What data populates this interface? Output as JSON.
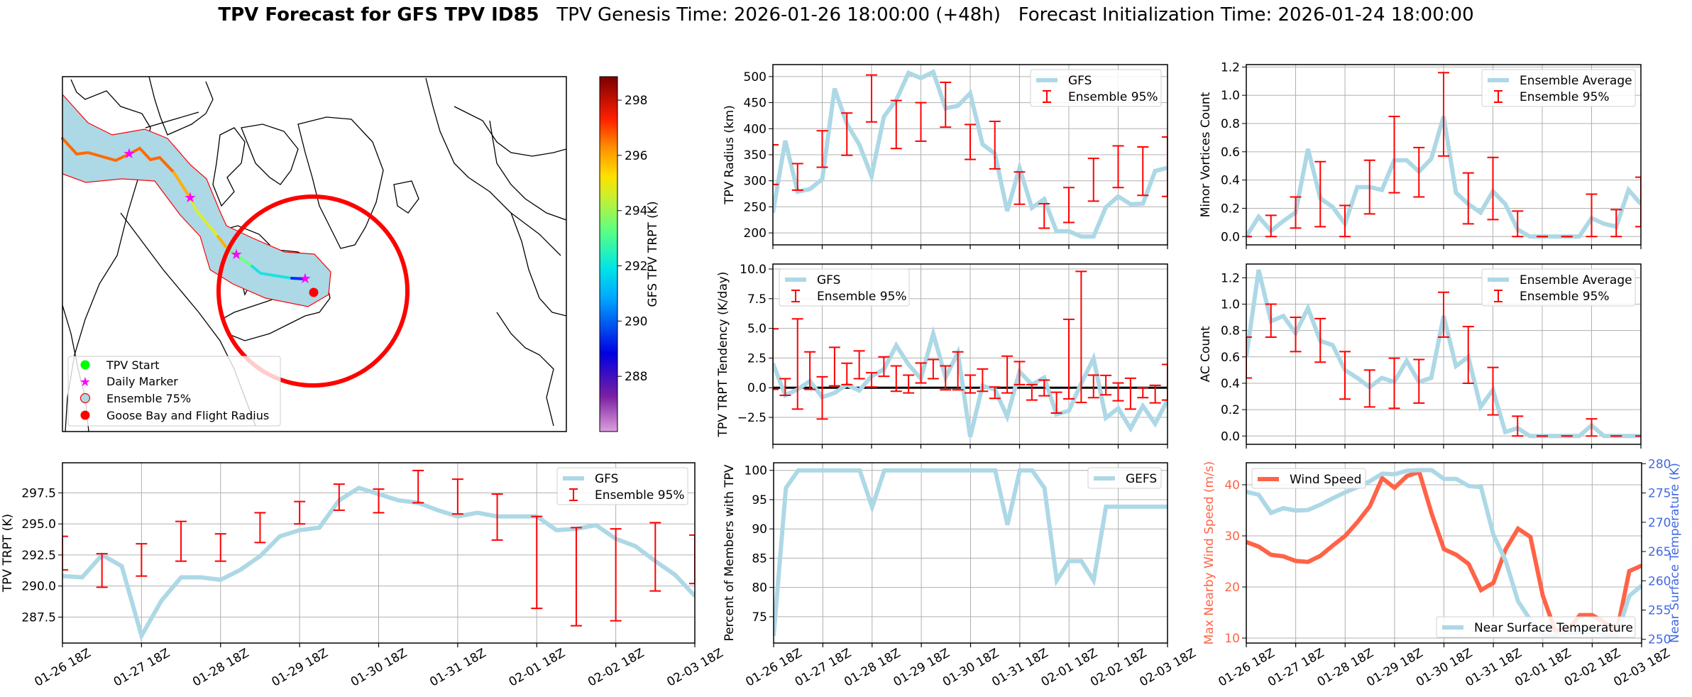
{
  "title": {
    "bold": "TPV Forecast for GFS TPV ID85",
    "genesis": "TPV Genesis Time: 2026-01-26 18:00:00 (+48h)",
    "init": "Forecast Initialization Time: 2026-01-24 18:00:00"
  },
  "colors": {
    "line": "#add8e6",
    "errorbar": "#ff0000",
    "wind": "#ff6347",
    "temp_axis": "#4169e1"
  },
  "map": {
    "legend": [
      "TPV Start",
      "Daily Marker",
      "Ensemble 75%",
      "Goose Bay and Flight Radius"
    ],
    "legend_colors": [
      "#00ff00",
      "#ff00ff",
      "#add8e6",
      "#ff0000"
    ],
    "colorbar": {
      "label": "GFS TPV TRPT (K)",
      "range": [
        286.0,
        298.85
      ],
      "ticks": [
        288,
        290,
        292,
        294,
        296,
        298
      ],
      "colormap": "jet-like (violet to dark red)"
    }
  },
  "chart_data": [
    {
      "id": "radius",
      "type": "line",
      "ylabel": "TPV Radius (km)",
      "ylim": [
        177,
        523
      ],
      "yticks": [
        200,
        250,
        300,
        350,
        400,
        450,
        500
      ],
      "ytick_labels": [
        "200",
        "250",
        "300",
        "350",
        "400",
        "450",
        "500"
      ],
      "x": [
        "01-26 18Z",
        "01-27 00Z",
        "01-27 06Z",
        "01-27 12Z",
        "01-27 18Z",
        "01-28 00Z",
        "01-28 06Z",
        "01-28 12Z",
        "01-28 18Z",
        "01-29 00Z",
        "01-29 06Z",
        "01-29 12Z",
        "01-29 18Z",
        "01-30 00Z",
        "01-30 06Z",
        "01-30 12Z",
        "01-30 18Z",
        "01-31 00Z",
        "01-31 06Z",
        "01-31 12Z",
        "01-31 18Z",
        "02-01 00Z",
        "02-01 06Z",
        "02-01 12Z",
        "02-01 18Z",
        "02-02 00Z",
        "02-02 06Z",
        "02-02 12Z",
        "02-02 18Z",
        "02-03 00Z",
        "02-03 06Z",
        "02-03 12Z",
        "02-03 18Z"
      ],
      "xticks": [
        "01-26 18Z",
        "01-27 18Z",
        "01-28 18Z",
        "01-29 18Z",
        "01-30 18Z",
        "01-31 18Z",
        "02-01 18Z",
        "02-02 18Z",
        "02-03 18Z"
      ],
      "show_xtick_labels": false,
      "grid": true,
      "legend": "top-right",
      "series": [
        {
          "name": "GFS",
          "values": [
            239,
            377,
            279,
            284,
            303,
            477,
            409,
            370,
            309,
            423,
            455,
            507,
            497,
            509,
            439,
            444,
            468,
            370,
            352,
            242,
            325,
            248,
            265,
            203,
            203,
            193,
            193,
            249,
            270,
            255,
            256,
            319,
            325
          ]
        }
      ],
      "errorbars": {
        "name": "Ensemble 95%",
        "step": 2,
        "low": [
          293,
          282,
          326,
          349,
          413,
          362,
          376,
          403,
          341,
          323,
          255,
          209,
          220,
          261,
          287,
          272,
          270
        ],
        "high": [
          369,
          333,
          396,
          430,
          503,
          454,
          450,
          489,
          408,
          414,
          317,
          256,
          287,
          343,
          367,
          365,
          384
        ]
      }
    },
    {
      "id": "tendency",
      "type": "line",
      "ylabel": "TPV TRPT Tendency (K/day)",
      "ylim": [
        -4.77,
        10.42
      ],
      "yticks": [
        -2.5,
        0,
        2.5,
        5,
        7.5,
        10
      ],
      "ytick_labels": [
        "−2.5",
        "0.0",
        "2.5",
        "5.0",
        "7.5",
        "10.0"
      ],
      "show_xtick_labels": false,
      "grid": true,
      "legend": "top-left",
      "zero_line": true,
      "series": [
        {
          "name": "GFS",
          "values": [
            2.06,
            -0.64,
            -0.14,
            0.56,
            -0.8,
            -0.44,
            0.26,
            -0.24,
            0.96,
            1.56,
            3.56,
            1.96,
            0.76,
            4.56,
            0.86,
            2.96,
            -4.14,
            0.16,
            -0.14,
            -2.44,
            1.36,
            0.26,
            0.86,
            -2.24,
            -1.94,
            0.36,
            2.46,
            -2.54,
            -1.74,
            -3.44,
            -1.54,
            -3.04,
            -1.04
          ]
        }
      ],
      "errorbars": {
        "name": "Ensemble 95%",
        "step": 1,
        "low": [
          -0.14,
          -0.64,
          -1.8,
          -0.14,
          -2.64,
          0.16,
          0.26,
          0.76,
          0.06,
          0.96,
          -0.3,
          -0.44,
          0.4,
          0.76,
          -0.18,
          -0.18,
          -0.44,
          -0.3,
          -0.9,
          -0.44,
          0.26,
          -1.04,
          -0.68,
          -2.14,
          -0.94,
          -1.24,
          -0.84,
          -0.6,
          -1.1,
          -1.8,
          -0.84,
          -1.28,
          -1.04
        ],
        "high": [
          4.96,
          0.76,
          5.8,
          3.02,
          0.92,
          3.4,
          2.06,
          3.1,
          1.26,
          2.6,
          1.84,
          1.06,
          2.08,
          2.38,
          1.84,
          3.02,
          1.06,
          1.58,
          0.06,
          2.66,
          2.2,
          0.26,
          0.64,
          -0.38,
          5.76,
          9.8,
          1.06,
          1.04,
          0.4,
          0.8,
          0,
          0.2,
          1.96
        ]
      }
    },
    {
      "id": "members",
      "type": "line",
      "ylabel": "Percent of Members with TPV",
      "ylim": [
        70.5,
        101.3
      ],
      "yticks": [
        75,
        80,
        85,
        90,
        95,
        100
      ],
      "ytick_labels": [
        "75",
        "80",
        "85",
        "90",
        "95",
        "100"
      ],
      "show_xtick_labels": true,
      "grid": true,
      "legend": "top-right",
      "series": [
        {
          "name": "GEFS",
          "values": [
            71.7,
            97,
            100,
            100,
            100,
            100,
            100,
            100,
            93.7,
            100,
            100,
            100,
            100,
            100,
            100,
            100,
            100,
            100,
            100,
            90.7,
            100,
            100,
            97,
            81.2,
            84.5,
            84.5,
            81.2,
            93.8,
            93.8,
            93.8,
            93.8,
            93.8,
            93.8
          ]
        }
      ]
    },
    {
      "id": "minor",
      "type": "line",
      "ylabel": "Minor Vortices Count",
      "ylim": [
        -0.059,
        1.217
      ],
      "yticks": [
        0,
        0.2,
        0.4,
        0.6,
        0.8,
        1.0,
        1.2
      ],
      "ytick_labels": [
        "0.0",
        "0.2",
        "0.4",
        "0.6",
        "0.8",
        "1.0",
        "1.2"
      ],
      "show_xtick_labels": false,
      "grid": true,
      "legend": "top-right",
      "series": [
        {
          "name": "Ensemble Average",
          "values": [
            0,
            0.14,
            0.04,
            0.11,
            0.17,
            0.62,
            0.27,
            0.21,
            0.09,
            0.35,
            0.35,
            0.33,
            0.54,
            0.54,
            0.46,
            0.55,
            0.85,
            0.31,
            0.23,
            0.17,
            0.32,
            0.23,
            0.05,
            0,
            0,
            0,
            0,
            0,
            0.13,
            0.09,
            0.07,
            0.33,
            0.23
          ]
        }
      ],
      "errorbars": {
        "name": "Ensemble 95%",
        "step": 2,
        "low": [
          0,
          0,
          0.06,
          0.07,
          0,
          0.16,
          0.31,
          0.28,
          0.57,
          0.09,
          0.12,
          0,
          0,
          0,
          0,
          0,
          0.07
        ],
        "high": [
          0,
          0.15,
          0.28,
          0.53,
          0.22,
          0.54,
          0.85,
          0.63,
          1.16,
          0.45,
          0.56,
          0.18,
          0,
          0,
          0.3,
          0.19,
          0.42
        ]
      }
    },
    {
      "id": "ac",
      "type": "line",
      "ylabel": "AC Count",
      "ylim": [
        -0.063,
        1.304
      ],
      "yticks": [
        0,
        0.2,
        0.4,
        0.6,
        0.8,
        1.0,
        1.2
      ],
      "ytick_labels": [
        "0.0",
        "0.2",
        "0.4",
        "0.6",
        "0.8",
        "1.0",
        "1.2"
      ],
      "show_xtick_labels": false,
      "grid": true,
      "legend": "top-right",
      "series": [
        {
          "name": "Ensemble Average",
          "values": [
            0.6,
            1.26,
            0.87,
            0.91,
            0.78,
            0.97,
            0.72,
            0.69,
            0.5,
            0.44,
            0.37,
            0.44,
            0.41,
            0.57,
            0.41,
            0.44,
            0.91,
            0.53,
            0.6,
            0.22,
            0.35,
            0.03,
            0.06,
            0,
            0,
            0,
            0,
            0,
            0.08,
            0,
            0,
            0,
            0
          ]
        }
      ],
      "errorbars": {
        "name": "Ensemble 95%",
        "step": 2,
        "low": [
          0.44,
          0.75,
          0.64,
          0.56,
          0.28,
          0.22,
          0.21,
          0.25,
          0.75,
          0.4,
          0.16,
          0,
          0,
          0,
          0,
          0,
          0
        ],
        "high": [
          0.75,
          1.0,
          0.9,
          0.89,
          0.64,
          0.5,
          0.59,
          0.58,
          1.09,
          0.83,
          0.52,
          0.15,
          0,
          0,
          0.13,
          0,
          0
        ]
      }
    },
    {
      "id": "wind_temp",
      "type": "line",
      "ylabel": "Max Nearby Wind Speed (m/s)",
      "ylim": [
        9.03,
        44.3
      ],
      "yticks": [
        10,
        20,
        30,
        40
      ],
      "ytick_labels": [
        "10",
        "20",
        "30",
        "40"
      ],
      "y2label": "Near Surface Temperature (K)",
      "y2lim": [
        249.36,
        280.16
      ],
      "y2ticks": [
        250,
        255,
        260,
        265,
        270,
        275,
        280
      ],
      "y2tick_labels": [
        "250",
        "255",
        "260",
        "265",
        "270",
        "275",
        "280"
      ],
      "show_xtick_labels": true,
      "grid": true,
      "legend": "top-left / bottom-right",
      "series": [
        {
          "name": "Wind Speed",
          "axis": "left",
          "values": [
            28.8,
            27.9,
            26.3,
            26.0,
            25.1,
            24.9,
            26.1,
            28.1,
            30.0,
            32.7,
            35.8,
            41.3,
            39.4,
            41.7,
            42.5,
            34.4,
            27.4,
            26.3,
            24.5,
            19.4,
            20.8,
            27.4,
            31.4,
            29.8,
            18.3,
            11.5,
            11.5,
            14.5,
            14.5,
            13.1,
            11.3,
            23.1,
            24.2
          ]
        },
        {
          "name": "Near Surface Temperature",
          "axis": "right",
          "values": [
            275.2,
            274.7,
            271.6,
            272.4,
            272.0,
            272.1,
            273.0,
            274.1,
            275.1,
            276.0,
            277.0,
            278.3,
            278.2,
            278.8,
            278.9,
            278.9,
            277.4,
            277.4,
            276.2,
            276.0,
            267.9,
            263.4,
            256.5,
            253.3,
            250.7,
            250.7,
            251.1,
            251.1,
            251.4,
            250.8,
            250.7,
            257.4,
            259.2
          ]
        }
      ]
    },
    {
      "id": "trpt",
      "type": "line",
      "ylabel": "TPV TRPT (K)",
      "ylim": [
        285.41,
        299.92
      ],
      "yticks": [
        287.5,
        290,
        292.5,
        295,
        297.5
      ],
      "ytick_labels": [
        "287.5",
        "290.0",
        "292.5",
        "295.0",
        "297.5"
      ],
      "show_xtick_labels": true,
      "grid": true,
      "legend": "top-right",
      "series": [
        {
          "name": "GFS",
          "values": [
            290.8,
            290.7,
            292.5,
            291.6,
            286.0,
            288.8,
            290.7,
            290.7,
            290.5,
            291.3,
            292.4,
            294.0,
            294.5,
            294.7,
            296.9,
            297.9,
            297.4,
            296.9,
            296.7,
            296.1,
            295.6,
            295.9,
            295.6,
            295.6,
            295.6,
            294.5,
            294.6,
            294.9,
            293.8,
            293.2,
            292.0,
            290.9,
            289.2
          ]
        }
      ],
      "errorbars": {
        "name": "Ensemble 95%",
        "step": 2,
        "low": [
          291.3,
          289.9,
          290.8,
          292.0,
          292.0,
          293.5,
          295.0,
          296.1,
          295.9,
          296.7,
          295.8,
          293.7,
          288.2,
          286.8,
          287.2,
          289.6,
          290.2
        ],
        "high": [
          294.0,
          292.6,
          293.4,
          295.2,
          294.2,
          295.9,
          296.8,
          298.2,
          297.8,
          299.3,
          298.6,
          297.4,
          295.6,
          294.7,
          294.6,
          295.1,
          294.1
        ]
      }
    }
  ]
}
